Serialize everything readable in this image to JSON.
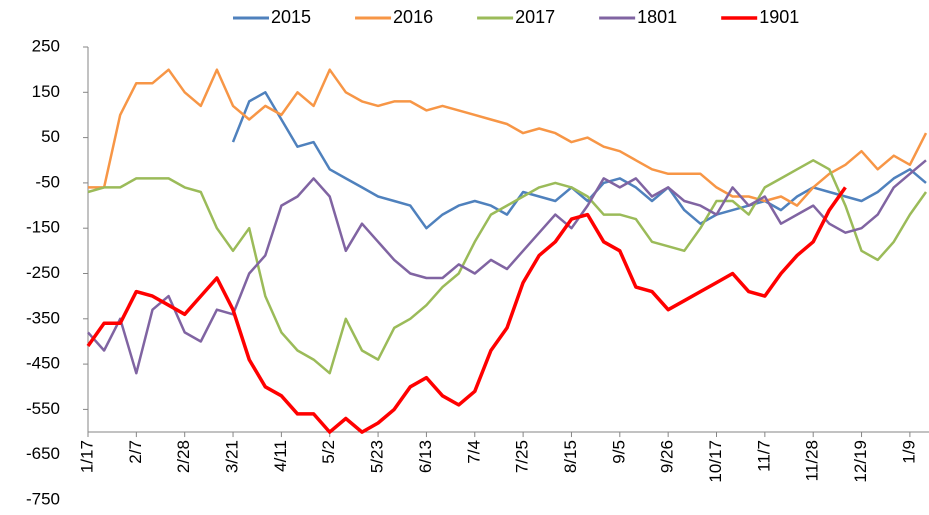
{
  "chart_data": {
    "type": "line",
    "categories": [
      "1/17",
      null,
      null,
      "2/7",
      null,
      null,
      "2/28",
      null,
      null,
      "3/21",
      null,
      null,
      "4/11",
      null,
      null,
      "5/2",
      null,
      null,
      "5/23",
      null,
      null,
      "6/13",
      null,
      null,
      "7/4",
      null,
      null,
      "7/25",
      null,
      null,
      "8/15",
      null,
      null,
      "9/5",
      null,
      null,
      "9/26",
      null,
      null,
      "10/17",
      null,
      null,
      "11/7",
      null,
      null,
      "11/28",
      null,
      null,
      "12/19",
      null,
      null,
      "1/9",
      null
    ],
    "series": [
      {
        "name": "2015",
        "color": "#4f81bd",
        "values": [
          null,
          null,
          null,
          null,
          null,
          null,
          null,
          null,
          null,
          40,
          130,
          150,
          90,
          30,
          40,
          -20,
          -40,
          -60,
          -80,
          -90,
          -100,
          -150,
          -120,
          -100,
          -90,
          -100,
          -120,
          -70,
          -80,
          -90,
          -60,
          -90,
          -50,
          -40,
          -60,
          -90,
          -60,
          -110,
          -140,
          -120,
          -110,
          -100,
          -90,
          -110,
          -80,
          -60,
          -70,
          -80,
          -90,
          -70,
          -40,
          -20,
          -50
        ]
      },
      {
        "name": "2016",
        "color": "#f79646",
        "values": [
          -60,
          -60,
          100,
          170,
          170,
          200,
          150,
          120,
          200,
          120,
          90,
          120,
          100,
          150,
          120,
          200,
          150,
          130,
          120,
          130,
          130,
          110,
          120,
          110,
          100,
          90,
          80,
          60,
          70,
          60,
          40,
          50,
          30,
          20,
          0,
          -20,
          -30,
          -30,
          -30,
          -60,
          -80,
          -80,
          -90,
          -80,
          -100,
          -60,
          -30,
          -10,
          20,
          -20,
          10,
          -10,
          60
        ]
      },
      {
        "name": "2017",
        "color": "#9bbb59",
        "values": [
          -70,
          -60,
          -60,
          -40,
          -40,
          -40,
          -60,
          -70,
          -150,
          -200,
          -150,
          -300,
          -380,
          -420,
          -440,
          -470,
          -350,
          -420,
          -440,
          -370,
          -350,
          -320,
          -280,
          -250,
          -180,
          -120,
          -100,
          -80,
          -60,
          -50,
          -60,
          -80,
          -120,
          -120,
          -130,
          -180,
          -190,
          -200,
          -150,
          -90,
          -90,
          -120,
          -60,
          -40,
          -20,
          0,
          -20,
          -100,
          -200,
          -220,
          -180,
          -120,
          -70
        ]
      },
      {
        "name": "1801",
        "color": "#8064a2",
        "values": [
          -380,
          -420,
          -350,
          -470,
          -330,
          -300,
          -380,
          -400,
          -330,
          -340,
          -250,
          -210,
          -100,
          -80,
          -40,
          -80,
          -200,
          -140,
          -180,
          -220,
          -250,
          -260,
          -260,
          -230,
          -250,
          -220,
          -240,
          -200,
          -160,
          -120,
          -150,
          -100,
          -40,
          -60,
          -40,
          -80,
          -60,
          -90,
          -100,
          -120,
          -60,
          -100,
          -80,
          -140,
          -120,
          -100,
          -140,
          -160,
          -150,
          -120,
          -60,
          -30,
          0
        ]
      },
      {
        "name": "1901",
        "color": "#ff0000",
        "width": 3.5,
        "values": [
          -410,
          -360,
          -360,
          -290,
          -300,
          -320,
          -340,
          -300,
          -260,
          -330,
          -440,
          -500,
          -520,
          -560,
          -560,
          -600,
          -570,
          -600,
          -580,
          -550,
          -500,
          -480,
          -520,
          -540,
          -510,
          -420,
          -370,
          -270,
          -210,
          -180,
          -130,
          -120,
          -180,
          -200,
          -280,
          -290,
          -330,
          -310,
          -290,
          -270,
          -250,
          -290,
          -300,
          -250,
          -210,
          -180,
          -110,
          -60,
          null,
          null,
          null,
          null,
          null
        ]
      }
    ],
    "ylim": [
      -750,
      250
    ],
    "yticks": [
      -750,
      -650,
      -550,
      -450,
      -350,
      -250,
      -150,
      -50,
      50,
      150,
      250
    ],
    "x_axis_crosses": -600,
    "legend": "top"
  }
}
